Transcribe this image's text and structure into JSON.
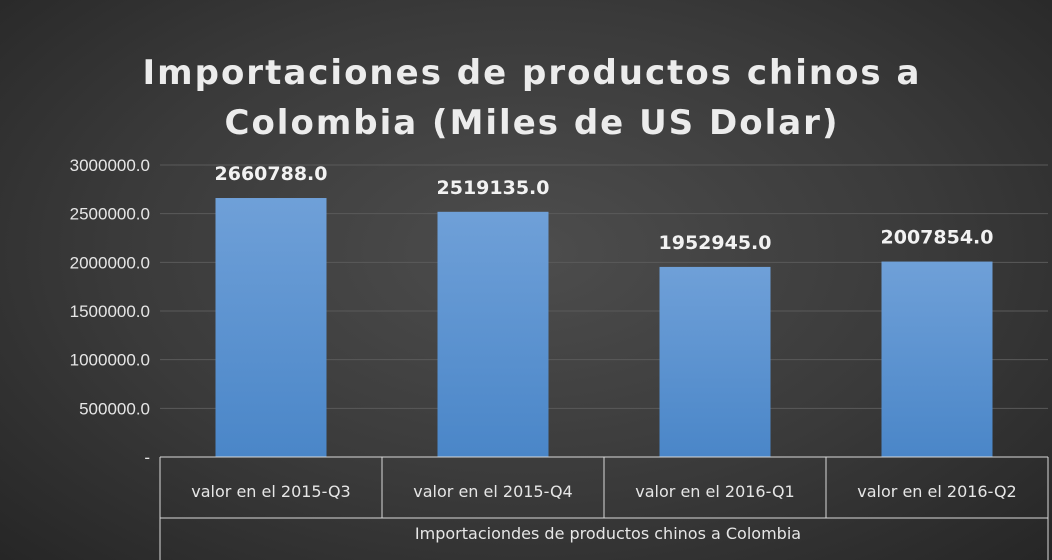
{
  "chart_data": {
    "type": "bar",
    "title_lines": [
      "Importaciones de productos chinos a",
      "Colombia (Miles de US Dolar)"
    ],
    "categories": [
      "valor en el 2015-Q3",
      "valor en el 2015-Q4",
      "valor en el 2016-Q1",
      "valor en el 2016-Q2"
    ],
    "group_label": "Importaciondes de productos chinos a Colombia",
    "values": [
      2660788.0,
      2519135.0,
      1952945.0,
      2007854.0
    ],
    "data_labels": [
      "2660788.0",
      "2519135.0",
      "1952945.0",
      "2007854.0"
    ],
    "ylim": [
      0,
      3000000
    ],
    "yticks": [
      {
        "value": 0,
        "label": "-"
      },
      {
        "value": 500000,
        "label": "500000.0"
      },
      {
        "value": 1000000,
        "label": "1000000.0"
      },
      {
        "value": 1500000,
        "label": "1500000.0"
      },
      {
        "value": 2000000,
        "label": "2000000.0"
      },
      {
        "value": 2500000,
        "label": "2500000.0"
      },
      {
        "value": 3000000,
        "label": "3000000.0"
      }
    ],
    "grid": true,
    "legend": "none",
    "colors": {
      "bar_top": "#6fa0d8",
      "bar_bottom": "#4a86c8",
      "gridline": "#5a5a5a",
      "text": "#e6e6e6"
    }
  }
}
